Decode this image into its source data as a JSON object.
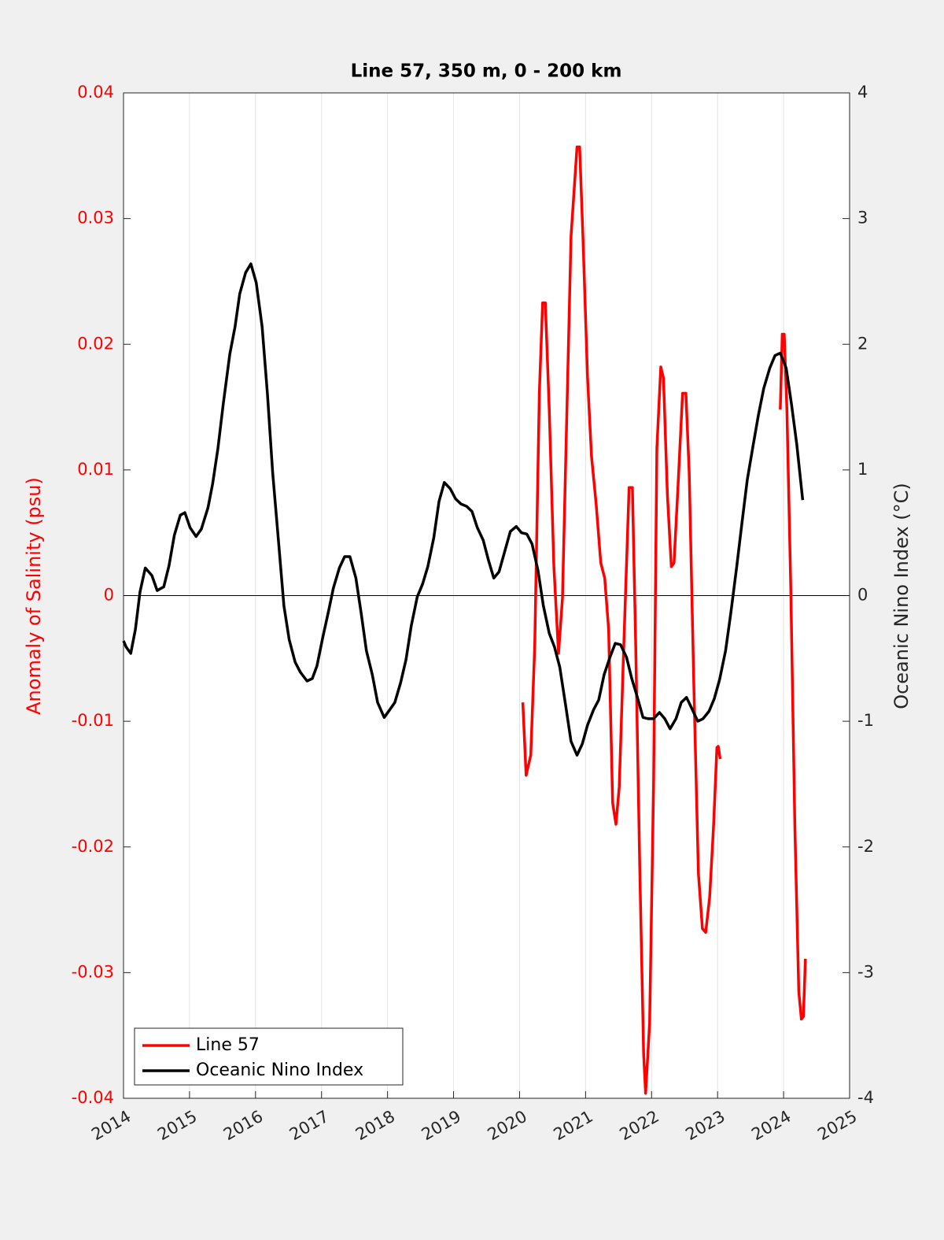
{
  "chart_data": {
    "type": "line",
    "title": "Line 57, 350 m, 0 - 200 km",
    "ylabel": "Anomaly of Salinity (psu)",
    "y2label": "Oceanic Nino Index (°C)",
    "ylabel_color": "#ff0000",
    "xlim": [
      2014,
      2025
    ],
    "xticks": [
      2014,
      2015,
      2016,
      2017,
      2018,
      2019,
      2020,
      2021,
      2022,
      2023,
      2024,
      2025
    ],
    "ylim": [
      -0.04,
      0.04
    ],
    "yticks": [
      -0.04,
      -0.03,
      -0.02,
      -0.01,
      0,
      0.01,
      0.02,
      0.03,
      0.04
    ],
    "y2lim": [
      -4,
      4
    ],
    "y2ticks": [
      -4,
      -3,
      -2,
      -1,
      0,
      1,
      2,
      3,
      4
    ],
    "grid": "x",
    "legend": "southwest",
    "series": [
      {
        "name": "Line 57",
        "color": "#ff0000",
        "axis": "y",
        "x": [
          2020.05,
          2020.1,
          2020.17,
          2020.23,
          2020.3,
          2020.35,
          2020.39,
          2020.45,
          2020.52,
          2020.59,
          2020.65,
          2020.71,
          2020.78,
          2020.87,
          2020.91,
          2020.96,
          2021.03,
          2021.09,
          2021.16,
          2021.23,
          2021.29,
          2021.35,
          2021.41,
          2021.46,
          2021.51,
          2021.58,
          2021.66,
          2021.71,
          2021.76,
          2021.82,
          2021.88,
          2021.91,
          2021.97,
          2022.03,
          2022.08,
          2022.14,
          2022.18,
          2022.24,
          2022.3,
          2022.34,
          2022.4,
          2022.47,
          2022.52,
          2022.57,
          2022.64,
          2022.71,
          2022.77,
          2022.82,
          2022.88,
          2022.94,
          2022.99,
          2023.01,
          2023.04,
          2023.5,
          2023.95,
          2023.98,
          2024.01,
          2024.05,
          2024.11,
          2024.17,
          2024.23,
          2024.27,
          2024.3,
          2024.33
        ],
        "values": [
          -0.0085,
          -0.0143,
          -0.0127,
          -0.0039,
          0.0161,
          0.0233,
          0.0233,
          0.0148,
          0.0023,
          -0.0046,
          -0.0002,
          0.013,
          0.0286,
          0.0357,
          0.0357,
          0.0286,
          0.0173,
          0.0111,
          0.0073,
          0.0026,
          0.0014,
          -0.0027,
          -0.0165,
          -0.0182,
          -0.0152,
          -0.0039,
          0.0086,
          0.0086,
          -0.0039,
          -0.0215,
          -0.0365,
          -0.0396,
          -0.034,
          -0.0152,
          0.0117,
          0.0182,
          0.0173,
          0.008,
          0.0023,
          0.0026,
          0.0086,
          0.0161,
          0.0161,
          0.0098,
          -0.0071,
          -0.0221,
          -0.0265,
          -0.0268,
          -0.024,
          -0.0183,
          -0.0121,
          -0.012,
          -0.013,
          null,
          0.0148,
          0.0208,
          0.0208,
          0.0148,
          0.0004,
          -0.0183,
          -0.0315,
          -0.0337,
          -0.0335,
          -0.0289
        ]
      },
      {
        "name": "Oceanic Nino Index",
        "color": "#000000",
        "axis": "y2",
        "x": [
          2014.0,
          2014.04,
          2014.11,
          2014.18,
          2014.25,
          2014.33,
          2014.43,
          2014.51,
          2014.61,
          2014.69,
          2014.77,
          2014.86,
          2014.93,
          2015.01,
          2015.1,
          2015.18,
          2015.28,
          2015.35,
          2015.43,
          2015.51,
          2015.61,
          2015.69,
          2015.76,
          2015.85,
          2015.93,
          2016.01,
          2016.1,
          2016.18,
          2016.26,
          2016.35,
          2016.43,
          2016.51,
          2016.6,
          2016.68,
          2016.78,
          2016.86,
          2016.93,
          2017.02,
          2017.1,
          2017.18,
          2017.27,
          2017.35,
          2017.43,
          2017.52,
          2017.6,
          2017.68,
          2017.77,
          2017.85,
          2017.95,
          2018.03,
          2018.11,
          2018.2,
          2018.28,
          2018.36,
          2018.45,
          2018.53,
          2018.61,
          2018.7,
          2018.78,
          2018.86,
          2018.95,
          2019.03,
          2019.11,
          2019.2,
          2019.28,
          2019.36,
          2019.45,
          2019.53,
          2019.61,
          2019.69,
          2019.78,
          2019.86,
          2019.95,
          2020.03,
          2020.11,
          2020.19,
          2020.28,
          2020.36,
          2020.45,
          2020.53,
          2020.61,
          2020.7,
          2020.78,
          2020.87,
          2020.95,
          2021.03,
          2021.12,
          2021.2,
          2021.28,
          2021.37,
          2021.45,
          2021.53,
          2021.62,
          2021.7,
          2021.78,
          2021.87,
          2021.95,
          2022.03,
          2022.12,
          2022.2,
          2022.28,
          2022.37,
          2022.45,
          2022.53,
          2022.62,
          2022.7,
          2022.78,
          2022.87,
          2022.95,
          2023.03,
          2023.12,
          2023.2,
          2023.29,
          2023.37,
          2023.45,
          2023.54,
          2023.62,
          2023.7,
          2023.79,
          2023.87,
          2023.95,
          2024.04,
          2024.12,
          2024.2,
          2024.29
        ],
        "values": [
          -0.36,
          -0.41,
          -0.46,
          -0.27,
          0.03,
          0.22,
          0.16,
          0.04,
          0.07,
          0.24,
          0.48,
          0.64,
          0.66,
          0.54,
          0.47,
          0.53,
          0.7,
          0.89,
          1.17,
          1.52,
          1.92,
          2.14,
          2.4,
          2.57,
          2.64,
          2.49,
          2.14,
          1.61,
          0.98,
          0.42,
          -0.08,
          -0.35,
          -0.53,
          -0.61,
          -0.68,
          -0.66,
          -0.56,
          -0.33,
          -0.14,
          0.06,
          0.22,
          0.31,
          0.31,
          0.14,
          -0.14,
          -0.44,
          -0.63,
          -0.85,
          -0.97,
          -0.91,
          -0.85,
          -0.69,
          -0.51,
          -0.24,
          -0.01,
          0.09,
          0.23,
          0.46,
          0.75,
          0.9,
          0.85,
          0.77,
          0.73,
          0.71,
          0.67,
          0.54,
          0.44,
          0.28,
          0.14,
          0.19,
          0.36,
          0.51,
          0.55,
          0.5,
          0.49,
          0.41,
          0.2,
          -0.08,
          -0.3,
          -0.41,
          -0.57,
          -0.88,
          -1.16,
          -1.27,
          -1.18,
          -1.03,
          -0.91,
          -0.83,
          -0.63,
          -0.49,
          -0.38,
          -0.39,
          -0.49,
          -0.66,
          -0.8,
          -0.97,
          -0.98,
          -0.98,
          -0.93,
          -0.98,
          -1.06,
          -0.98,
          -0.85,
          -0.81,
          -0.91,
          -1.0,
          -0.98,
          -0.92,
          -0.82,
          -0.67,
          -0.44,
          -0.14,
          0.23,
          0.58,
          0.92,
          1.2,
          1.44,
          1.65,
          1.81,
          1.91,
          1.93,
          1.81,
          1.52,
          1.2,
          0.76
        ]
      }
    ]
  }
}
